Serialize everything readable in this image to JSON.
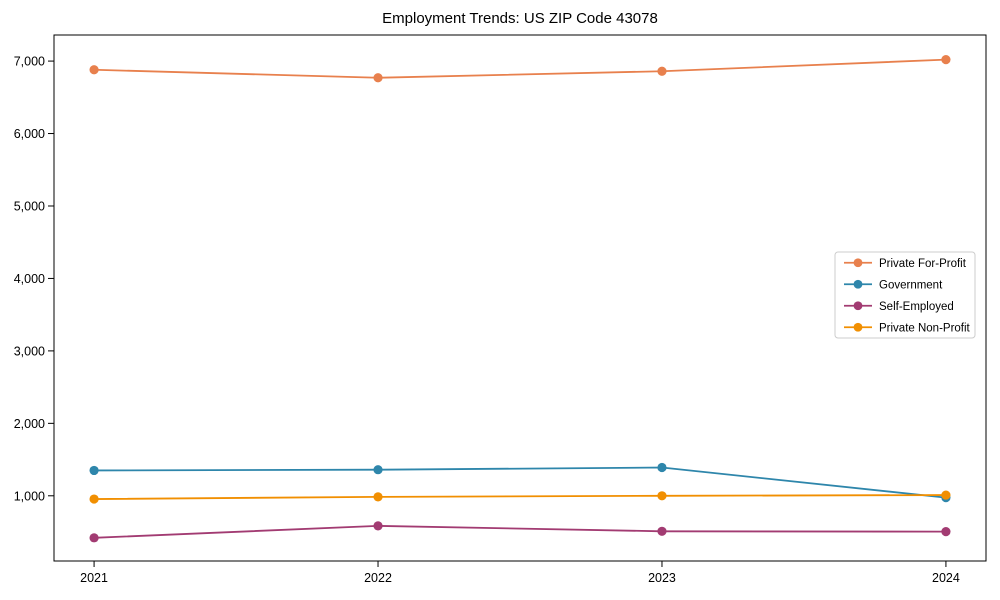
{
  "page": {
    "background_color": "#ffffff",
    "text_color": "#000000",
    "spine_color": "#000000",
    "legend_border_color": "#cccccc"
  },
  "chart_data": {
    "type": "line",
    "title": "Employment Trends: US ZIP Code 43078",
    "xlabel": "",
    "ylabel": "",
    "grid": false,
    "boxed_axes": true,
    "legend_position": "middle-right",
    "x": [
      2021,
      2022,
      2023,
      2024
    ],
    "x_tick_labels": [
      "2021",
      "2022",
      "2023",
      "2024"
    ],
    "y_ticks": [
      1000,
      2000,
      3000,
      4000,
      5000,
      6000,
      7000
    ],
    "y_tick_labels": [
      "1,000",
      "2,000",
      "3,000",
      "4,000",
      "5,000",
      "6,000",
      "7,000"
    ],
    "ylim": [
      100,
      7360
    ],
    "marker": "circle",
    "series": [
      {
        "name": "Private For-Profit",
        "color": "#E8804D",
        "values": [
          6880,
          6770,
          6860,
          7020
        ]
      },
      {
        "name": "Government",
        "color": "#2E86AB",
        "values": [
          1350,
          1360,
          1390,
          975
        ]
      },
      {
        "name": "Self-Employed",
        "color": "#A23B72",
        "values": [
          420,
          585,
          510,
          505
        ]
      },
      {
        "name": "Private Non-Profit",
        "color": "#F18F01",
        "values": [
          955,
          985,
          1000,
          1010
        ]
      }
    ]
  }
}
